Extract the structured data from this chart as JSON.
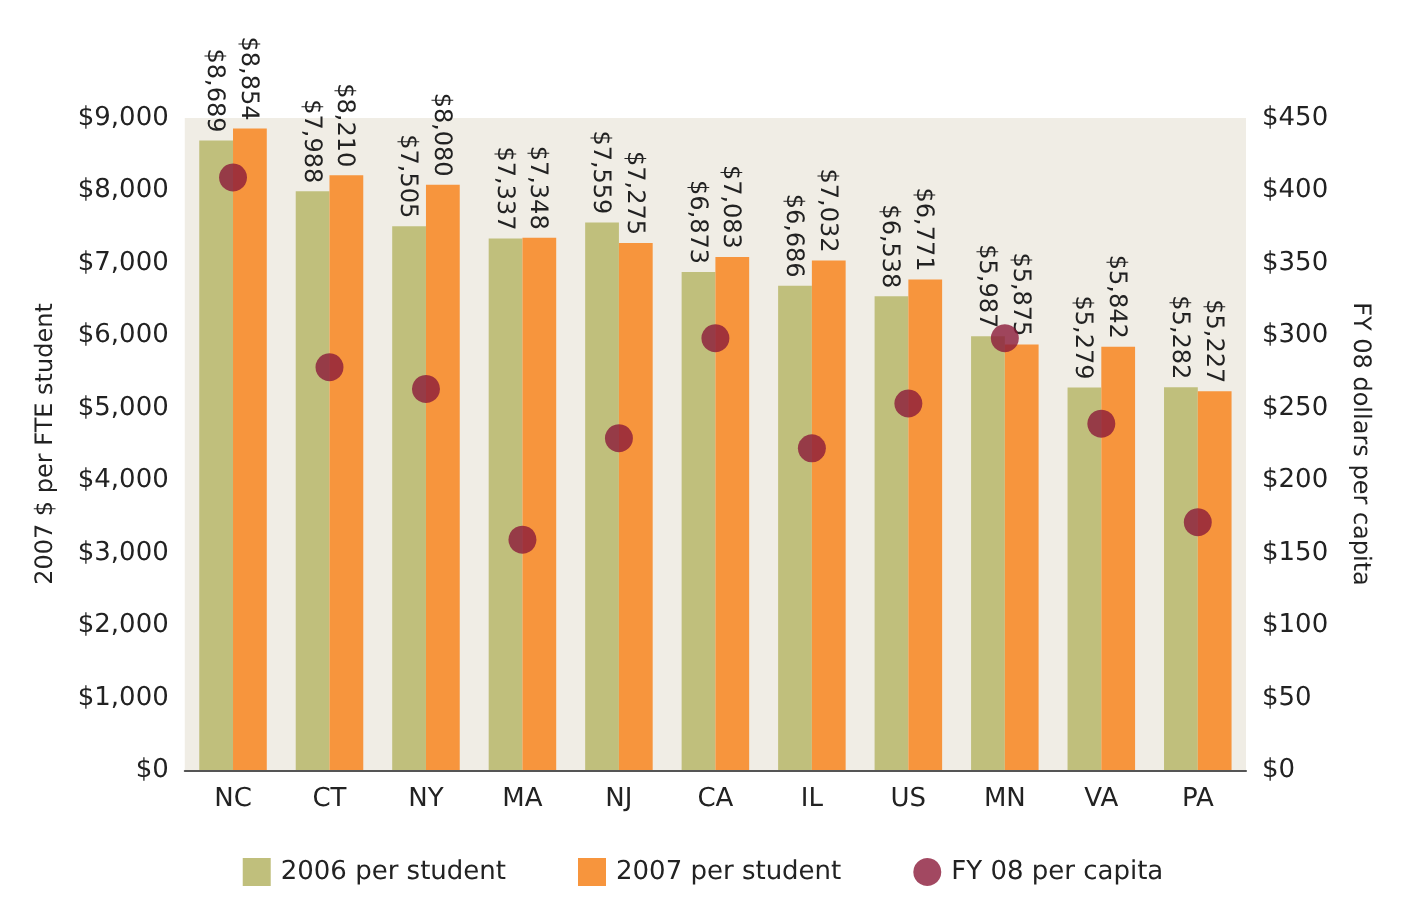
{
  "chart_data": {
    "type": "bar",
    "categories": [
      "NC",
      "CT",
      "NY",
      "MA",
      "NJ",
      "CA",
      "IL",
      "US",
      "MN",
      "VA",
      "PA"
    ],
    "series": [
      {
        "name": "2006 per student",
        "color": "#c0bf7c",
        "values": [
          8689,
          7988,
          7505,
          7337,
          7559,
          6873,
          6686,
          6538,
          5987,
          5279,
          5282
        ],
        "value_labels": [
          "$8,689",
          "$7,988",
          "$7,505",
          "$7,337",
          "$7,559",
          "$6,873",
          "$6,686",
          "$6,538",
          "$5,987",
          "$5,279",
          "$5,282"
        ]
      },
      {
        "name": "2007 per student",
        "color": "#f7953d",
        "values": [
          8854,
          8210,
          8080,
          7348,
          7275,
          7083,
          7032,
          6771,
          5875,
          5842,
          5227
        ],
        "value_labels": [
          "$8,854",
          "$8,210",
          "$8,080",
          "$7,348",
          "$7,275",
          "$7,083",
          "$7,032",
          "$6,771",
          "$5,875",
          "$5,842",
          "$5,227"
        ]
      },
      {
        "name": "FY 08 per capita",
        "type": "scatter",
        "axis": "y2",
        "color": "#8b1a3a",
        "marker": "circle",
        "values": [
          409,
          278,
          263,
          159,
          229,
          298,
          222,
          253,
          298,
          239,
          171
        ]
      }
    ],
    "ylabel": "2007 $ per FTE student",
    "y2label": "FY 08 dollars per capita",
    "ylim": [
      0,
      9000
    ],
    "yticks": [
      {
        "value": 0,
        "label": "$0"
      },
      {
        "value": 1000,
        "label": "$1,000"
      },
      {
        "value": 2000,
        "label": "$2,000"
      },
      {
        "value": 3000,
        "label": "$3,000"
      },
      {
        "value": 4000,
        "label": "$4,000"
      },
      {
        "value": 5000,
        "label": "$5,000"
      },
      {
        "value": 6000,
        "label": "$6,000"
      },
      {
        "value": 7000,
        "label": "$7,000"
      },
      {
        "value": 8000,
        "label": "$8,000"
      },
      {
        "value": 9000,
        "label": "$9,000"
      }
    ],
    "y2lim": [
      0,
      450
    ],
    "y2ticks": [
      {
        "value": 0,
        "label": "$0"
      },
      {
        "value": 50,
        "label": "$50"
      },
      {
        "value": 100,
        "label": "$100"
      },
      {
        "value": 150,
        "label": "$150"
      },
      {
        "value": 200,
        "label": "$200"
      },
      {
        "value": 250,
        "label": "$250"
      },
      {
        "value": 300,
        "label": "$300"
      },
      {
        "value": 350,
        "label": "$350"
      },
      {
        "value": 400,
        "label": "$400"
      },
      {
        "value": 450,
        "label": "$450"
      }
    ],
    "grid": false,
    "legend": "bottom"
  }
}
